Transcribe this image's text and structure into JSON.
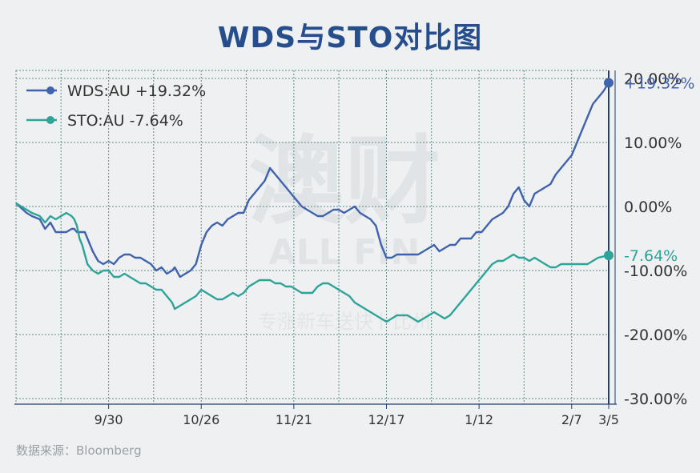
{
  "title": "WDS与STO对比图",
  "source": "数据来源：Bloomberg",
  "watermark": {
    "main": "澳财",
    "latin": "ALL FIN",
    "sub": "专涨新车送快卜比州"
  },
  "colors": {
    "wds": "#3f63ad",
    "sto": "#2ea398",
    "grid": "#5f8b8b",
    "axis": "#1f3f75",
    "text": "#333333"
  },
  "chart_data": {
    "type": "line",
    "title": "WDS与STO对比图",
    "x_ticks": [
      "9/30",
      "10/26",
      "11/21",
      "12/17",
      "1/12",
      "2/7",
      "3/5"
    ],
    "y_ticks": [
      "20.00%",
      "10.00%",
      "0.00%",
      "-10.00%",
      "-20.00%",
      "-30.00%"
    ],
    "ylim": [
      -30,
      22
    ],
    "grid": true,
    "legend_position": "top-left",
    "x_unit": "trading days (approx. 100 sessions, Sep to Mar 5)",
    "series": [
      {
        "name": "WDS:AU",
        "legend": "WDS:AU +19.32%",
        "end_label": "+19.32%",
        "color": "#3f63ad",
        "values": [
          [
            0,
            0.5
          ],
          [
            4,
            -1
          ],
          [
            6,
            -1.5
          ],
          [
            9,
            -2
          ],
          [
            11,
            -3.5
          ],
          [
            13,
            -2.5
          ],
          [
            15,
            -4
          ],
          [
            17,
            -4
          ],
          [
            19,
            -4
          ],
          [
            21,
            -3.5
          ],
          [
            22,
            -3.5
          ],
          [
            23,
            -4
          ],
          [
            24,
            -4
          ],
          [
            25,
            -4
          ],
          [
            26,
            -4
          ],
          [
            27,
            -5
          ],
          [
            29,
            -7
          ],
          [
            31,
            -8.5
          ],
          [
            33,
            -9
          ],
          [
            35,
            -8.5
          ],
          [
            37,
            -9
          ],
          [
            39,
            -8
          ],
          [
            41,
            -7.5
          ],
          [
            43,
            -7.5
          ],
          [
            45,
            -8
          ],
          [
            47,
            -8
          ],
          [
            49,
            -8.5
          ],
          [
            51,
            -9
          ],
          [
            53,
            -10
          ],
          [
            55,
            -9.5
          ],
          [
            57,
            -10.5
          ],
          [
            59,
            -10
          ],
          [
            60,
            -9.5
          ],
          [
            62,
            -11
          ],
          [
            64,
            -10.5
          ],
          [
            66,
            -10
          ],
          [
            68,
            -9
          ],
          [
            70,
            -6
          ],
          [
            72,
            -4
          ],
          [
            74,
            -3
          ],
          [
            76,
            -2.5
          ],
          [
            78,
            -3
          ],
          [
            80,
            -2
          ],
          [
            82,
            -1.5
          ],
          [
            84,
            -1
          ],
          [
            86,
            -1
          ],
          [
            88,
            1
          ],
          [
            90,
            2
          ],
          [
            92,
            3
          ],
          [
            94,
            4
          ],
          [
            96,
            6
          ],
          [
            98,
            5
          ],
          [
            100,
            4
          ],
          [
            102,
            3
          ],
          [
            104,
            2
          ],
          [
            106,
            1
          ],
          [
            108,
            0
          ],
          [
            110,
            -0.5
          ],
          [
            112,
            -1
          ],
          [
            114,
            -1.5
          ],
          [
            116,
            -1.5
          ],
          [
            118,
            -1
          ],
          [
            120,
            -0.5
          ],
          [
            122,
            -0.5
          ],
          [
            124,
            -1
          ],
          [
            126,
            -0.5
          ],
          [
            128,
            0
          ],
          [
            130,
            -1
          ],
          [
            132,
            -1.5
          ],
          [
            134,
            -2
          ],
          [
            136,
            -3
          ],
          [
            138,
            -6
          ],
          [
            140,
            -8
          ],
          [
            142,
            -8
          ],
          [
            144,
            -7.5
          ],
          [
            146,
            -7.5
          ],
          [
            148,
            -7.5
          ],
          [
            150,
            -7.5
          ],
          [
            152,
            -7.5
          ],
          [
            154,
            -7
          ],
          [
            156,
            -6.5
          ],
          [
            158,
            -6
          ],
          [
            160,
            -7
          ],
          [
            162,
            -6.5
          ],
          [
            164,
            -6
          ],
          [
            166,
            -6
          ],
          [
            168,
            -5
          ],
          [
            170,
            -5
          ],
          [
            172,
            -5
          ],
          [
            174,
            -4
          ],
          [
            176,
            -4
          ],
          [
            178,
            -3
          ],
          [
            180,
            -2
          ],
          [
            182,
            -1.5
          ],
          [
            184,
            -1
          ],
          [
            186,
            0
          ],
          [
            188,
            2
          ],
          [
            190,
            3
          ],
          [
            192,
            1
          ],
          [
            194,
            0
          ],
          [
            196,
            2
          ],
          [
            198,
            2.5
          ],
          [
            200,
            3
          ],
          [
            202,
            3.5
          ],
          [
            204,
            5
          ],
          [
            206,
            6
          ],
          [
            208,
            7
          ],
          [
            210,
            8
          ],
          [
            212,
            10
          ],
          [
            214,
            12
          ],
          [
            216,
            14
          ],
          [
            218,
            16
          ],
          [
            220,
            17
          ],
          [
            222,
            18
          ],
          [
            224,
            19.32
          ]
        ]
      },
      {
        "name": "STO:AU",
        "legend": "STO:AU -7.64%",
        "end_label": "-7.64%",
        "color": "#2ea398",
        "values": [
          [
            0,
            0.5
          ],
          [
            4,
            -0.5
          ],
          [
            6,
            -1
          ],
          [
            9,
            -1.5
          ],
          [
            11,
            -2.5
          ],
          [
            13,
            -1.5
          ],
          [
            15,
            -2
          ],
          [
            17,
            -1.5
          ],
          [
            19,
            -1
          ],
          [
            21,
            -1.5
          ],
          [
            22,
            -2
          ],
          [
            23,
            -3
          ],
          [
            24,
            -5
          ],
          [
            25,
            -6
          ],
          [
            26,
            -7.5
          ],
          [
            27,
            -9
          ],
          [
            29,
            -10
          ],
          [
            31,
            -10.5
          ],
          [
            33,
            -10
          ],
          [
            35,
            -10
          ],
          [
            37,
            -11
          ],
          [
            39,
            -11
          ],
          [
            41,
            -10.5
          ],
          [
            43,
            -11
          ],
          [
            45,
            -11.5
          ],
          [
            47,
            -12
          ],
          [
            49,
            -12
          ],
          [
            51,
            -12.5
          ],
          [
            53,
            -13
          ],
          [
            55,
            -13
          ],
          [
            57,
            -14
          ],
          [
            59,
            -15
          ],
          [
            60,
            -16
          ],
          [
            62,
            -15.5
          ],
          [
            64,
            -15
          ],
          [
            66,
            -14.5
          ],
          [
            68,
            -14
          ],
          [
            70,
            -13
          ],
          [
            72,
            -13.5
          ],
          [
            74,
            -14
          ],
          [
            76,
            -14.5
          ],
          [
            78,
            -14.5
          ],
          [
            80,
            -14
          ],
          [
            82,
            -13.5
          ],
          [
            84,
            -14
          ],
          [
            86,
            -13.5
          ],
          [
            88,
            -12.5
          ],
          [
            90,
            -12
          ],
          [
            92,
            -11.5
          ],
          [
            94,
            -11.5
          ],
          [
            96,
            -11.5
          ],
          [
            98,
            -12
          ],
          [
            100,
            -12
          ],
          [
            102,
            -12.5
          ],
          [
            104,
            -12.5
          ],
          [
            106,
            -13
          ],
          [
            108,
            -13.5
          ],
          [
            110,
            -13.5
          ],
          [
            112,
            -13.5
          ],
          [
            114,
            -12.5
          ],
          [
            116,
            -12
          ],
          [
            118,
            -12
          ],
          [
            120,
            -12.5
          ],
          [
            122,
            -13
          ],
          [
            124,
            -13.5
          ],
          [
            126,
            -14
          ],
          [
            128,
            -15
          ],
          [
            130,
            -15.5
          ],
          [
            132,
            -16
          ],
          [
            134,
            -16.5
          ],
          [
            136,
            -17
          ],
          [
            138,
            -17.5
          ],
          [
            140,
            -18
          ],
          [
            142,
            -17.5
          ],
          [
            144,
            -17
          ],
          [
            146,
            -17
          ],
          [
            148,
            -17
          ],
          [
            150,
            -17.5
          ],
          [
            152,
            -18
          ],
          [
            154,
            -17.5
          ],
          [
            156,
            -17
          ],
          [
            158,
            -16.5
          ],
          [
            160,
            -17
          ],
          [
            162,
            -17.5
          ],
          [
            164,
            -17
          ],
          [
            166,
            -16
          ],
          [
            168,
            -15
          ],
          [
            170,
            -14
          ],
          [
            172,
            -13
          ],
          [
            174,
            -12
          ],
          [
            176,
            -11
          ],
          [
            178,
            -10
          ],
          [
            180,
            -9
          ],
          [
            182,
            -8.5
          ],
          [
            184,
            -8.5
          ],
          [
            186,
            -8
          ],
          [
            188,
            -7.5
          ],
          [
            190,
            -8
          ],
          [
            192,
            -8
          ],
          [
            194,
            -8.5
          ],
          [
            196,
            -8
          ],
          [
            198,
            -8.5
          ],
          [
            200,
            -9
          ],
          [
            202,
            -9.5
          ],
          [
            204,
            -9.5
          ],
          [
            206,
            -9
          ],
          [
            208,
            -9
          ],
          [
            210,
            -9
          ],
          [
            212,
            -9
          ],
          [
            214,
            -9
          ],
          [
            216,
            -9
          ],
          [
            218,
            -8.5
          ],
          [
            220,
            -8
          ],
          [
            222,
            -7.8
          ],
          [
            224,
            -7.64
          ]
        ]
      }
    ]
  }
}
